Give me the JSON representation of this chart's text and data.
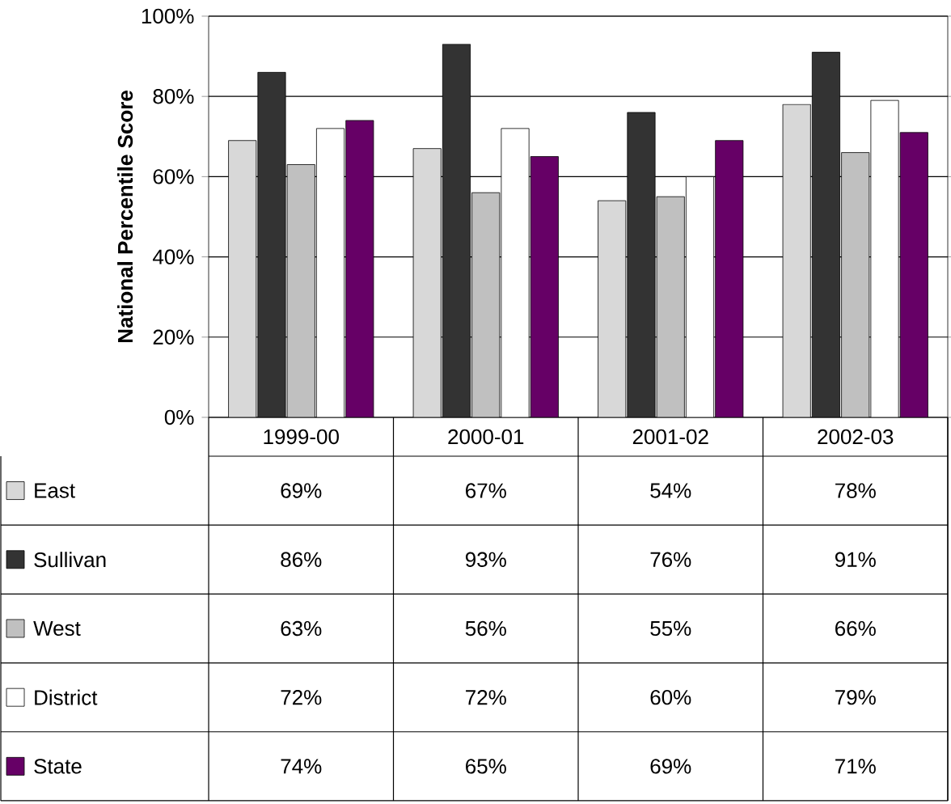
{
  "chart_data": {
    "type": "bar",
    "ylabel": "National Percentile Score",
    "categories": [
      "1999-00",
      "2000-01",
      "2001-02",
      "2002-03"
    ],
    "series": [
      {
        "name": "East",
        "color": "#d8d8d8",
        "values": [
          69,
          67,
          54,
          78
        ],
        "value_labels": [
          "69%",
          "67%",
          "54%",
          "78%"
        ]
      },
      {
        "name": "Sullivan",
        "color": "#333333",
        "values": [
          86,
          93,
          76,
          91
        ],
        "value_labels": [
          "86%",
          "93%",
          "76%",
          "91%"
        ]
      },
      {
        "name": "West",
        "color": "#c0c0c0",
        "values": [
          63,
          56,
          55,
          66
        ],
        "value_labels": [
          "63%",
          "56%",
          "55%",
          "66%"
        ]
      },
      {
        "name": "District",
        "color": "#ffffff",
        "values": [
          72,
          72,
          60,
          79
        ],
        "value_labels": [
          "72%",
          "72%",
          "60%",
          "79%"
        ]
      },
      {
        "name": "State",
        "color": "#660066",
        "values": [
          74,
          65,
          69,
          71
        ],
        "value_labels": [
          "74%",
          "65%",
          "69%",
          "71%"
        ]
      }
    ],
    "ylim": [
      0,
      100
    ],
    "yticks": [
      {
        "value": 0,
        "label": "0%"
      },
      {
        "value": 20,
        "label": "20%"
      },
      {
        "value": 40,
        "label": "40%"
      },
      {
        "value": 60,
        "label": "60%"
      },
      {
        "value": 80,
        "label": "80%"
      },
      {
        "value": 100,
        "label": "100%"
      }
    ],
    "grid": "y",
    "legend": "bottom"
  }
}
